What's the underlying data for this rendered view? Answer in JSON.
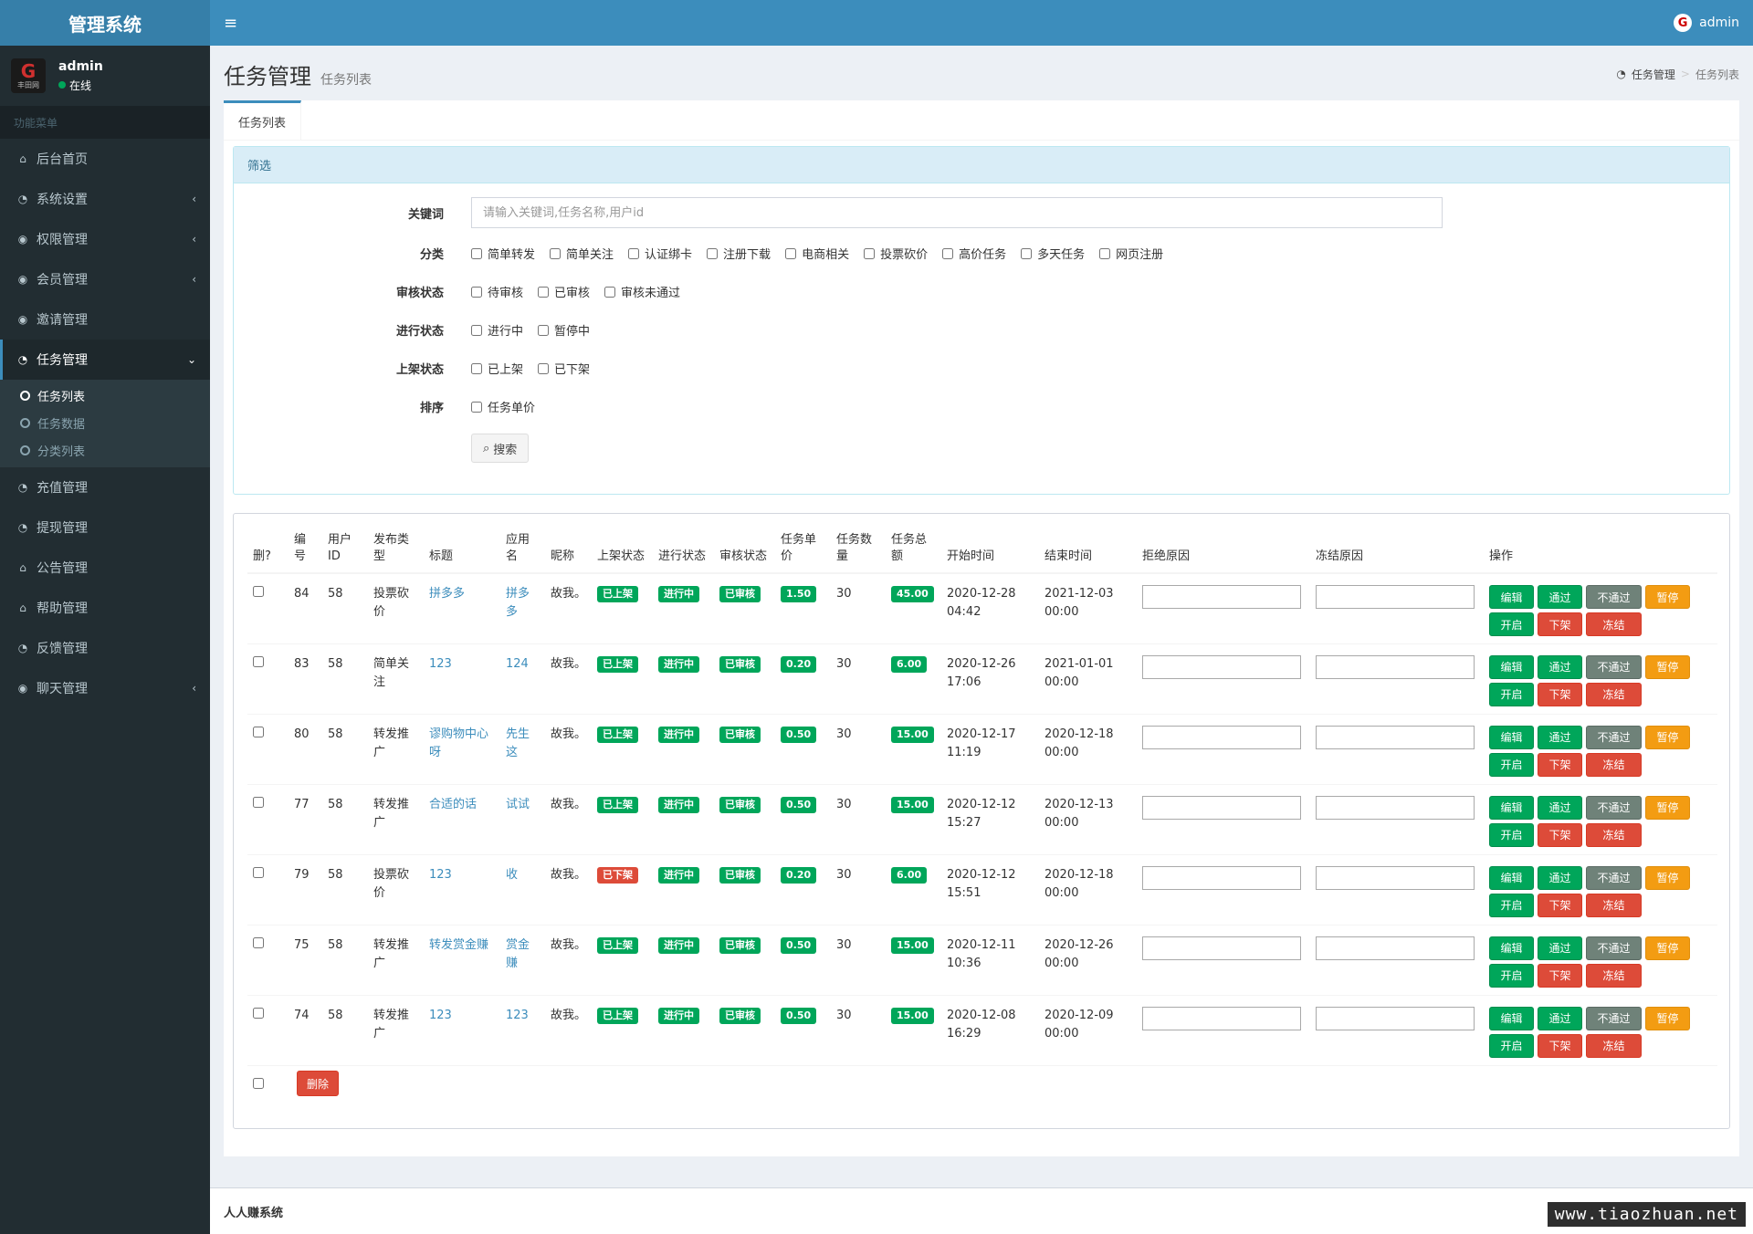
{
  "header": {
    "app_title": "管理系统",
    "menu_toggle": "≡",
    "user": "admin",
    "avatar_letter": "G"
  },
  "sidebar": {
    "avatar_text": "G",
    "avatar_caption": "丰田网",
    "user_name": "admin",
    "status": "在线",
    "menu_header": "功能菜单",
    "items": [
      {
        "label": "后台首页",
        "icon": "home-icon",
        "glyph": "⌂"
      },
      {
        "label": "系统设置",
        "icon": "dashboard-icon",
        "glyph": "◔",
        "chevron": "‹"
      },
      {
        "label": "权限管理",
        "icon": "users-icon",
        "glyph": "◉",
        "chevron": "‹"
      },
      {
        "label": "会员管理",
        "icon": "users-icon",
        "glyph": "◉",
        "chevron": "‹"
      },
      {
        "label": "邀请管理",
        "icon": "users-icon",
        "glyph": "◉"
      },
      {
        "label": "任务管理",
        "icon": "dashboard-icon",
        "glyph": "◔",
        "chevron": "⌄"
      },
      {
        "label": "充值管理",
        "icon": "dashboard-icon",
        "glyph": "◔"
      },
      {
        "label": "提现管理",
        "icon": "dashboard-icon",
        "glyph": "◔"
      },
      {
        "label": "公告管理",
        "icon": "home-icon",
        "glyph": "⌂"
      },
      {
        "label": "帮助管理",
        "icon": "home-icon",
        "glyph": "⌂"
      },
      {
        "label": "反馈管理",
        "icon": "dashboard-icon",
        "glyph": "◔"
      },
      {
        "label": "聊天管理",
        "icon": "users-icon",
        "glyph": "◉",
        "chevron": "‹"
      }
    ],
    "submenu": [
      "任务列表",
      "任务数据",
      "分类列表"
    ]
  },
  "page": {
    "title": "任务管理",
    "subtitle": "任务列表",
    "breadcrumb": [
      "任务管理",
      "任务列表"
    ],
    "breadcrumb_sep": ">",
    "tab": "任务列表"
  },
  "filter": {
    "heading": "筛选",
    "keyword_label": "关键词",
    "keyword_placeholder": "请输入关键词,任务名称,用户id",
    "category_label": "分类",
    "categories": [
      "简单转发",
      "简单关注",
      "认证绑卡",
      "注册下载",
      "电商相关",
      "投票砍价",
      "高价任务",
      "多天任务",
      "网页注册"
    ],
    "review_label": "审核状态",
    "review_options": [
      "待审核",
      "已审核",
      "审核未通过"
    ],
    "progress_label": "进行状态",
    "progress_options": [
      "进行中",
      "暂停中"
    ],
    "shelf_label": "上架状态",
    "shelf_options": [
      "已上架",
      "已下架"
    ],
    "sort_label": "排序",
    "sort_options": [
      "任务单价"
    ],
    "search_button": "搜索"
  },
  "table": {
    "headers": [
      "删?",
      "编号",
      "用户ID",
      "发布类型",
      "标题",
      "应用名",
      "昵称",
      "上架状态",
      "进行状态",
      "审核状态",
      "任务单价",
      "任务数量",
      "任务总额",
      "开始时间",
      "结束时间",
      "拒绝原因",
      "冻结原因",
      "操作"
    ],
    "actions": [
      "编辑",
      "通过",
      "不通过",
      "暂停",
      "开启",
      "下架",
      "冻结"
    ],
    "rows": [
      {
        "id": "84",
        "uid": "58",
        "type": "投票砍价",
        "title": "拼多多",
        "app": "拼多多",
        "nick": "故我。",
        "shelf": "已上架",
        "shelf_down": false,
        "progress": "进行中",
        "review": "已审核",
        "price": "1.50",
        "qty": "30",
        "total": "45.00",
        "start": "2020-12-28 04:42",
        "end": "2021-12-03 00:00"
      },
      {
        "id": "83",
        "uid": "58",
        "type": "简单关注",
        "title": "123",
        "app": "124",
        "nick": "故我。",
        "shelf": "已上架",
        "shelf_down": false,
        "progress": "进行中",
        "review": "已审核",
        "price": "0.20",
        "qty": "30",
        "total": "6.00",
        "start": "2020-12-26 17:06",
        "end": "2021-01-01 00:00"
      },
      {
        "id": "80",
        "uid": "58",
        "type": "转发推广",
        "title": "谬购物中心呀",
        "app": "先生这",
        "nick": "故我。",
        "shelf": "已上架",
        "shelf_down": false,
        "progress": "进行中",
        "review": "已审核",
        "price": "0.50",
        "qty": "30",
        "total": "15.00",
        "start": "2020-12-17 11:19",
        "end": "2020-12-18 00:00"
      },
      {
        "id": "77",
        "uid": "58",
        "type": "转发推广",
        "title": "合适的话",
        "app": "试试",
        "nick": "故我。",
        "shelf": "已上架",
        "shelf_down": false,
        "progress": "进行中",
        "review": "已审核",
        "price": "0.50",
        "qty": "30",
        "total": "15.00",
        "start": "2020-12-12 15:27",
        "end": "2020-12-13 00:00"
      },
      {
        "id": "79",
        "uid": "58",
        "type": "投票砍价",
        "title": "123",
        "app": "收",
        "nick": "故我。",
        "shelf": "已下架",
        "shelf_down": true,
        "progress": "进行中",
        "review": "已审核",
        "price": "0.20",
        "qty": "30",
        "total": "6.00",
        "start": "2020-12-12 15:51",
        "end": "2020-12-18 00:00"
      },
      {
        "id": "75",
        "uid": "58",
        "type": "转发推广",
        "title": "转发赏金赚",
        "app": "赏金赚",
        "nick": "故我。",
        "shelf": "已上架",
        "shelf_down": false,
        "progress": "进行中",
        "review": "已审核",
        "price": "0.50",
        "qty": "30",
        "total": "15.00",
        "start": "2020-12-11 10:36",
        "end": "2020-12-26 00:00"
      },
      {
        "id": "74",
        "uid": "58",
        "type": "转发推广",
        "title": "123",
        "app": "123",
        "nick": "故我。",
        "shelf": "已上架",
        "shelf_down": false,
        "progress": "进行中",
        "review": "已审核",
        "price": "0.50",
        "qty": "30",
        "total": "15.00",
        "start": "2020-12-08 16:29",
        "end": "2020-12-09 00:00"
      }
    ],
    "delete_button": "删除"
  },
  "footer": {
    "text": "人人赚系统"
  },
  "watermark": "www.tiaozhuan.net",
  "colors": {
    "header": "#3c8dbc",
    "logo": "#367fa9",
    "sidebar": "#222d32",
    "success": "#00a65a",
    "danger": "#dd4b39",
    "warning": "#f39c12"
  }
}
